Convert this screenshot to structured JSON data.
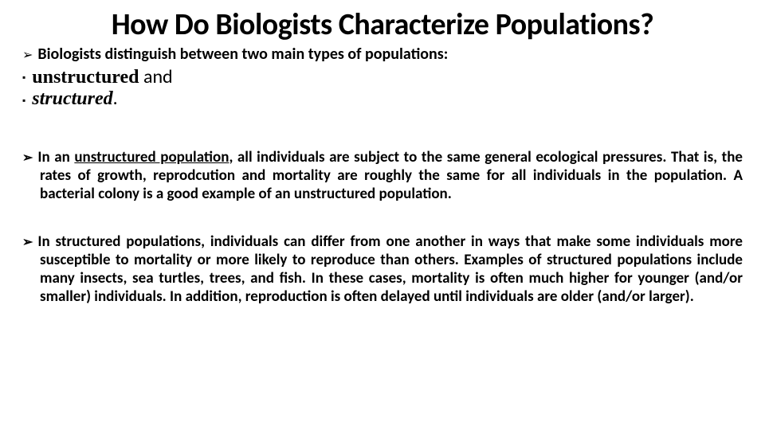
{
  "colors": {
    "background": "#ffffff",
    "text": "#000000"
  },
  "typography": {
    "title_fontsize": 38,
    "body_fontsize": 20,
    "type_fontsize": 24,
    "para_fontsize": 19
  },
  "title": "How Do Biologists Characterize Populations?",
  "intro": "Biologists distinguish between two main types of populations:",
  "types": {
    "item1_bold": "unstructured",
    "item1_and": "  and",
    "item2_italic": "structured",
    "item2_period": "."
  },
  "para1": {
    "lead": "In an ",
    "underlined": "unstructured population",
    "rest": ", all individuals are subject to the same general ecological pressures. That is, the rates of growth, reprodcution and mortality are roughly the same for all individuals in the population. A bacterial colony is a good example of an unstructured population."
  },
  "para2": {
    "text": "In structured populations, individuals can differ from one another in ways that make some individuals more susceptible to mortality or more likely to reproduce than others. Examples of structured populations include many insects, sea turtles, trees, and fish. In these cases, mortality is often much higher for younger (and/or smaller) individuals. In addition, reproduction is often delayed until individuals are older (and/or larger)."
  },
  "markers": {
    "arrow": "➢",
    "square": "▪"
  }
}
